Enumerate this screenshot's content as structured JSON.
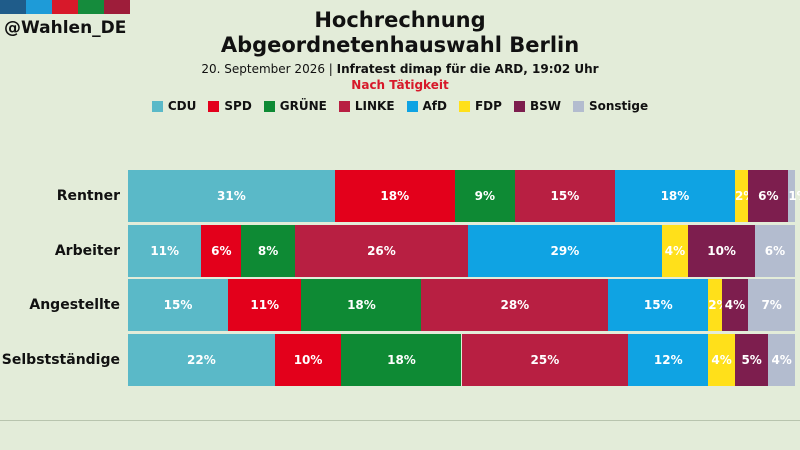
{
  "brand": {
    "handle": "@Wahlen_DE",
    "stripe_colors": [
      "#1f5c8a",
      "#1e9bd8",
      "#d7192a",
      "#158b3c",
      "#9e1d3a"
    ]
  },
  "header": {
    "title_line1": "Hochrechnung",
    "title_line2": "Abgeordnetenhauswahl Berlin",
    "date": "20. September 2026 |",
    "source": "Infratest dimap für die ARD, 19:02 Uhr",
    "note": "Nach Tätigkeit"
  },
  "chart_data": {
    "type": "bar",
    "orientation": "horizontal",
    "stacked": true,
    "categories": [
      "Rentner",
      "Arbeiter",
      "Angestellte",
      "Selbstständige"
    ],
    "series": [
      {
        "name": "CDU",
        "color": "#5ab9c8",
        "values": [
          31,
          11,
          15,
          22
        ],
        "labels": [
          "31%",
          "11%",
          "15%",
          "22%"
        ]
      },
      {
        "name": "SPD",
        "color": "#e3001b",
        "values": [
          18,
          6,
          11,
          10
        ],
        "labels": [
          "18%",
          "6%",
          "11%",
          "10%"
        ]
      },
      {
        "name": "GRÜNE",
        "color": "#0e8a34",
        "values": [
          9,
          8,
          18,
          18
        ],
        "labels": [
          "9%",
          "8%",
          "18%",
          "18%"
        ]
      },
      {
        "name": "LINKE",
        "color": "#b81f42",
        "values": [
          15,
          26,
          28,
          25
        ],
        "labels": [
          "15%",
          "26%",
          "28%",
          "25%"
        ]
      },
      {
        "name": "AfD",
        "color": "#0fa3e3",
        "values": [
          18,
          29,
          15,
          12
        ],
        "labels": [
          "18%",
          "29%",
          "15%",
          "12%"
        ]
      },
      {
        "name": "FDP",
        "color": "#ffe01a",
        "values": [
          2,
          4,
          2,
          4
        ],
        "labels": [
          "2%",
          "4%",
          "2%",
          "4%"
        ]
      },
      {
        "name": "BSW",
        "color": "#7d1e4e",
        "values": [
          6,
          10,
          4,
          5
        ],
        "labels": [
          "6%",
          "10%",
          "4%",
          "5%"
        ]
      },
      {
        "name": "Sonstige",
        "color": "#b3bccf",
        "values": [
          1,
          6,
          7,
          4
        ],
        "labels": [
          "1%",
          "6%",
          "7%",
          "4%"
        ]
      }
    ],
    "xlim": [
      0,
      100
    ],
    "grid": false,
    "legend_position": "top"
  }
}
